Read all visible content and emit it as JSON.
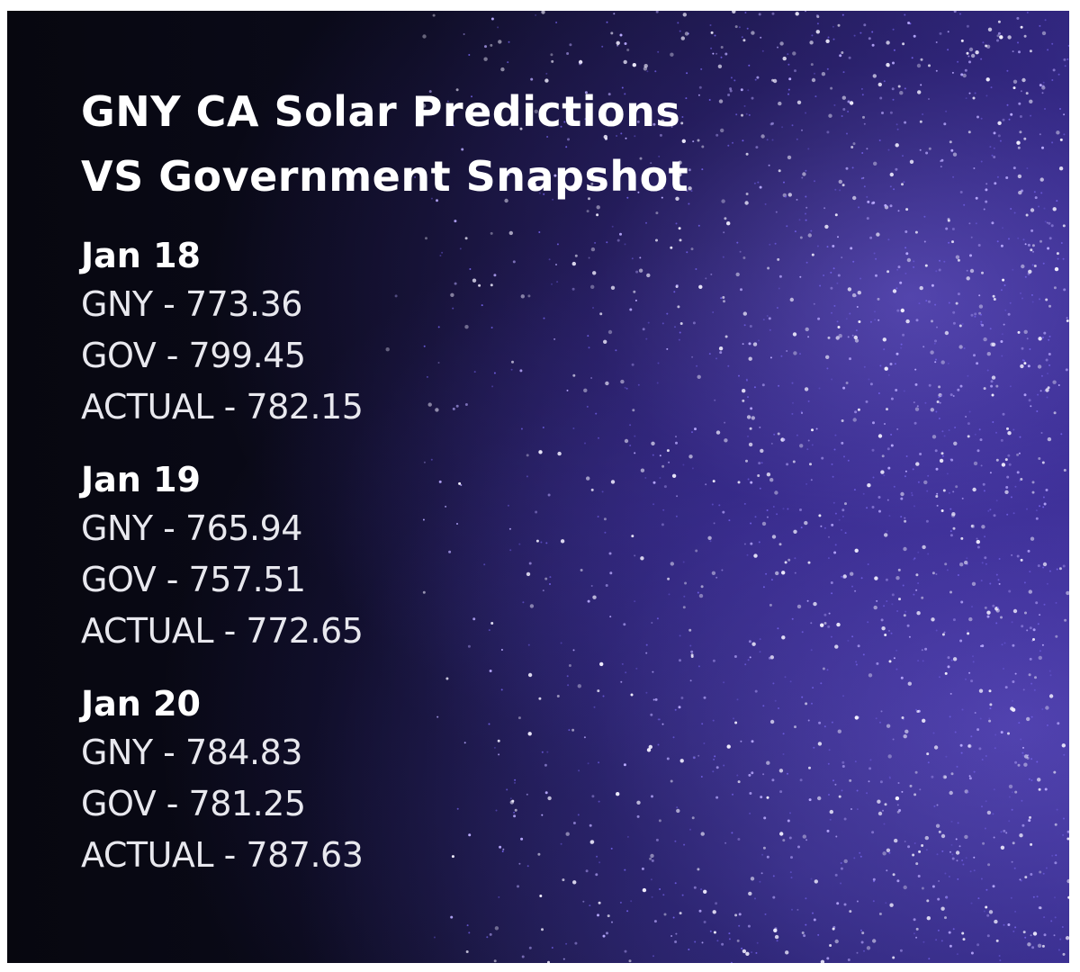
{
  "title_line1": "GNY CA Solar Predictions",
  "title_line2": "VS Government Snapshot",
  "days": [
    {
      "date": "Jan 18",
      "gny": "GNY - 773.36",
      "gov": "GOV - 799.45",
      "actual": "ACTUAL - 782.15"
    },
    {
      "date": "Jan 19",
      "gny": "GNY - 765.94",
      "gov": "GOV - 757.51",
      "actual": "ACTUAL - 772.65"
    },
    {
      "date": "Jan 20",
      "gny": "GNY - 784.83",
      "gov": "GOV - 781.25",
      "actual": "ACTUAL - 787.63"
    }
  ],
  "colors": {
    "background": "#0b0b1c",
    "particles": "#8f7dff",
    "text": "#ffffff"
  }
}
